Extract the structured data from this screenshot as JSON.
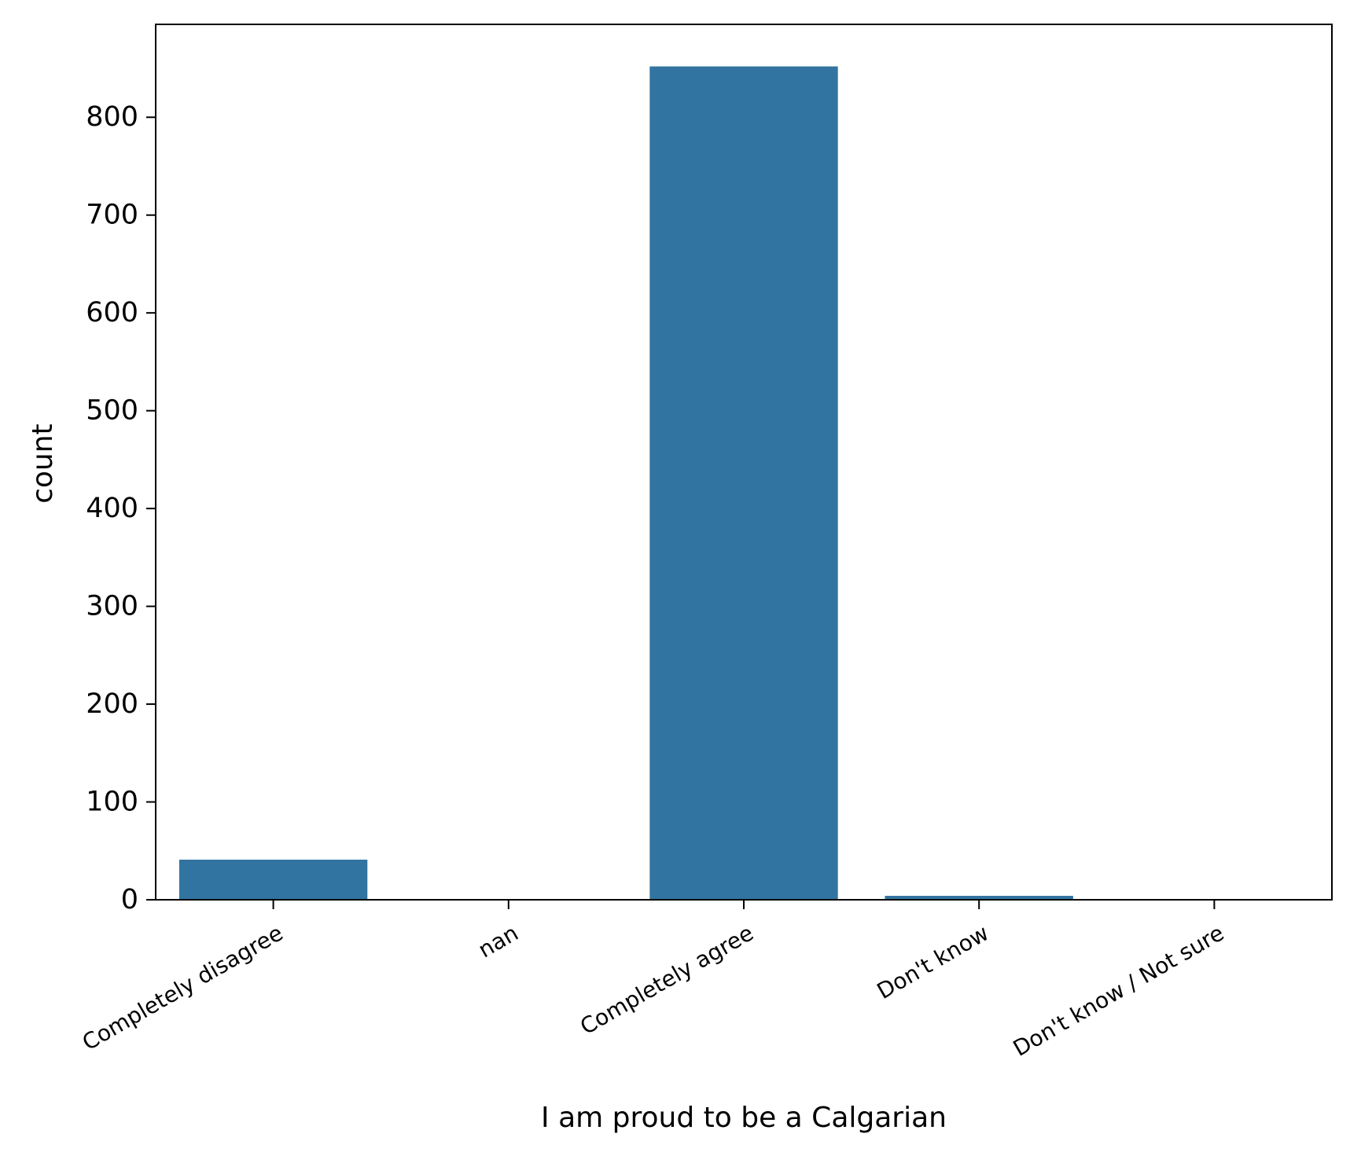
{
  "chart_data": {
    "type": "bar",
    "title": "",
    "xlabel": "I am proud to be a Calgarian",
    "ylabel": "count",
    "categories": [
      "Completely disagree",
      "nan",
      "Completely agree",
      "Don't know",
      "Don't know / Not sure"
    ],
    "values": [
      41,
      0,
      852,
      4,
      0
    ],
    "ylim": [
      0,
      895
    ],
    "yticks": [
      0,
      100,
      200,
      300,
      400,
      500,
      600,
      700,
      800
    ],
    "ytick_labels": [
      "0",
      "100",
      "200",
      "300",
      "400",
      "500",
      "600",
      "700",
      "800"
    ],
    "grid": false,
    "legend": "none",
    "bar_color": "#3274a1"
  }
}
